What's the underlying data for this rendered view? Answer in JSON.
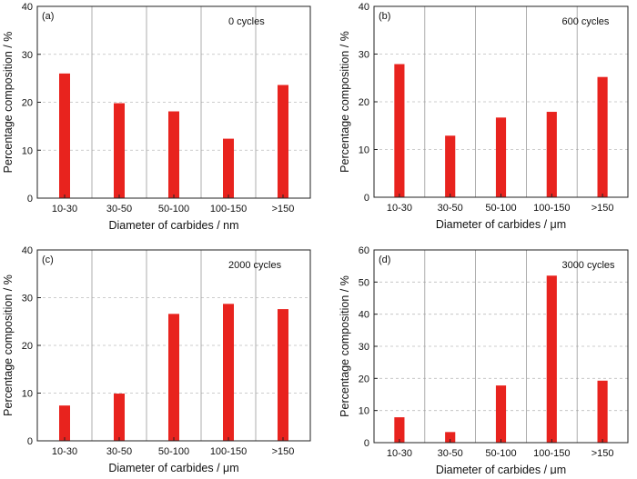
{
  "figure": {
    "panels_count": 4
  },
  "chart_data": [
    {
      "type": "bar",
      "panel_label": "(a)",
      "annotation": "0 cycles",
      "categories": [
        "10-30",
        "30-50",
        "50-100",
        "100-150",
        ">150"
      ],
      "values": [
        26.0,
        19.8,
        18.1,
        12.4,
        23.6
      ],
      "xlabel": "Diameter of carbides / nm",
      "ylabel": "Percentage composition / %",
      "ylim": [
        0,
        40
      ],
      "yticks": [
        0,
        10,
        20,
        30,
        40
      ],
      "grid": true,
      "bar_color": "#e8231e"
    },
    {
      "type": "bar",
      "panel_label": "(b)",
      "annotation": "600 cycles",
      "categories": [
        "10-30",
        "30-50",
        "50-100",
        "100-150",
        ">150"
      ],
      "values": [
        27.9,
        12.9,
        16.7,
        17.9,
        25.2
      ],
      "xlabel": "Diameter of carbides / μm",
      "ylabel": "Percentage composition / %",
      "ylim": [
        0,
        40
      ],
      "yticks": [
        0,
        10,
        20,
        30,
        40
      ],
      "grid": true,
      "bar_color": "#e8231e"
    },
    {
      "type": "bar",
      "panel_label": "(c)",
      "annotation": "2000 cycles",
      "categories": [
        "10-30",
        "30-50",
        "50-100",
        "100-150",
        ">150"
      ],
      "values": [
        7.4,
        9.9,
        26.6,
        28.7,
        27.6
      ],
      "xlabel": "Diameter of carbides / μm",
      "ylabel": "Percentage composition / %",
      "ylim": [
        0,
        40
      ],
      "yticks": [
        0,
        10,
        20,
        30,
        40
      ],
      "grid": true,
      "bar_color": "#e8231e"
    },
    {
      "type": "bar",
      "panel_label": "(d)",
      "annotation": "3000 cycles",
      "categories": [
        "10-30",
        "30-50",
        "50-100",
        "100-150",
        ">150"
      ],
      "values": [
        7.9,
        3.3,
        17.8,
        52.0,
        19.3
      ],
      "xlabel": "Diameter of carbides / μm",
      "ylabel": "Percentage composition / %",
      "ylim": [
        0,
        60
      ],
      "yticks": [
        0,
        10,
        20,
        30,
        40,
        50,
        60
      ],
      "grid": true,
      "bar_color": "#e8231e"
    }
  ]
}
